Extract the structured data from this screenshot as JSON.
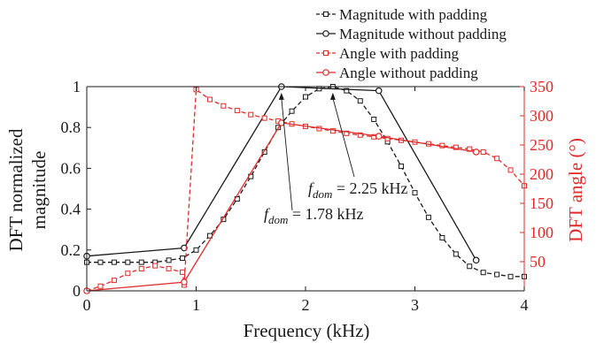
{
  "chart_data": {
    "type": "line",
    "xlabel": "Frequency (kHz)",
    "ylabel_left": [
      "DFT normalized",
      "magnitude"
    ],
    "ylabel_right": "DFT angle (°)",
    "xlim": [
      0,
      4
    ],
    "ylim_left": [
      0,
      1
    ],
    "ylim_right": [
      0,
      350
    ],
    "xticks": [
      0,
      1,
      2,
      3,
      4
    ],
    "yticks_left": [
      0,
      0.2,
      0.4,
      0.6,
      0.8,
      1
    ],
    "ytick_labels_left": [
      "0",
      "0.2",
      "0.4",
      "0.6",
      "0.8",
      "1"
    ],
    "yticks_right": [
      50,
      100,
      150,
      200,
      250,
      300,
      350
    ],
    "grid": false,
    "legend_position": "top-right",
    "colors": {
      "black": "#1a1a1a",
      "red": "#e02a2a"
    },
    "series": [
      {
        "name": "Magnitude with padding",
        "axis": "left",
        "color": "#1a1a1a",
        "line": "dashed",
        "marker": "square",
        "x": [
          0,
          0.125,
          0.25,
          0.375,
          0.5,
          0.625,
          0.75,
          0.875,
          1.0,
          1.125,
          1.25,
          1.375,
          1.5,
          1.625,
          1.75,
          1.875,
          2.0,
          2.125,
          2.25,
          2.375,
          2.5,
          2.625,
          2.75,
          2.875,
          3.0,
          3.125,
          3.25,
          3.375,
          3.5,
          3.625,
          3.75,
          3.875,
          4.0
        ],
        "y": [
          0.14,
          0.14,
          0.14,
          0.14,
          0.14,
          0.14,
          0.15,
          0.16,
          0.2,
          0.27,
          0.35,
          0.45,
          0.56,
          0.68,
          0.8,
          0.88,
          0.95,
          0.99,
          1.0,
          0.98,
          0.93,
          0.84,
          0.73,
          0.61,
          0.48,
          0.36,
          0.26,
          0.18,
          0.12,
          0.09,
          0.08,
          0.07,
          0.07
        ]
      },
      {
        "name": "Magnitude without padding",
        "axis": "left",
        "color": "#1a1a1a",
        "line": "solid",
        "marker": "circle",
        "x": [
          0,
          0.89,
          1.78,
          2.67,
          3.56
        ],
        "y": [
          0.17,
          0.21,
          1.0,
          0.98,
          0.15
        ]
      },
      {
        "name": "Angle with padding",
        "axis": "right",
        "color": "#e02a2a",
        "line": "dashed",
        "marker": "square",
        "x": [
          0,
          0.125,
          0.25,
          0.375,
          0.5,
          0.625,
          0.75,
          0.875,
          0.89,
          1.0,
          1.125,
          1.25,
          1.375,
          1.5,
          1.625,
          1.75,
          1.875,
          2.0,
          2.125,
          2.25,
          2.375,
          2.5,
          2.625,
          2.75,
          2.875,
          3.0,
          3.125,
          3.25,
          3.375,
          3.5,
          3.625,
          3.75,
          3.875,
          4.0
        ],
        "y": [
          0,
          8,
          18,
          30,
          38,
          43,
          38,
          32,
          10,
          345,
          328,
          317,
          309,
          302,
          296,
          291,
          286,
          282,
          278,
          274,
          270,
          267,
          264,
          261,
          258,
          255,
          252,
          249,
          246,
          243,
          238,
          227,
          207,
          180
        ]
      },
      {
        "name": "Angle without padding",
        "axis": "right",
        "color": "#e02a2a",
        "line": "solid",
        "marker": "circle",
        "x": [
          0,
          0.89,
          1.78,
          2.67,
          3.56
        ],
        "y": [
          0,
          15,
          288,
          265,
          238
        ]
      }
    ],
    "annotations": [
      {
        "label_main": "f",
        "label_sub": "dom",
        "label_value": "= 1.78 kHz",
        "x": 1.78,
        "y": 0.97
      },
      {
        "label_main": "f",
        "label_sub": "dom",
        "label_value": "= 2.25 kHz",
        "x": 2.25,
        "y": 0.97
      }
    ]
  }
}
